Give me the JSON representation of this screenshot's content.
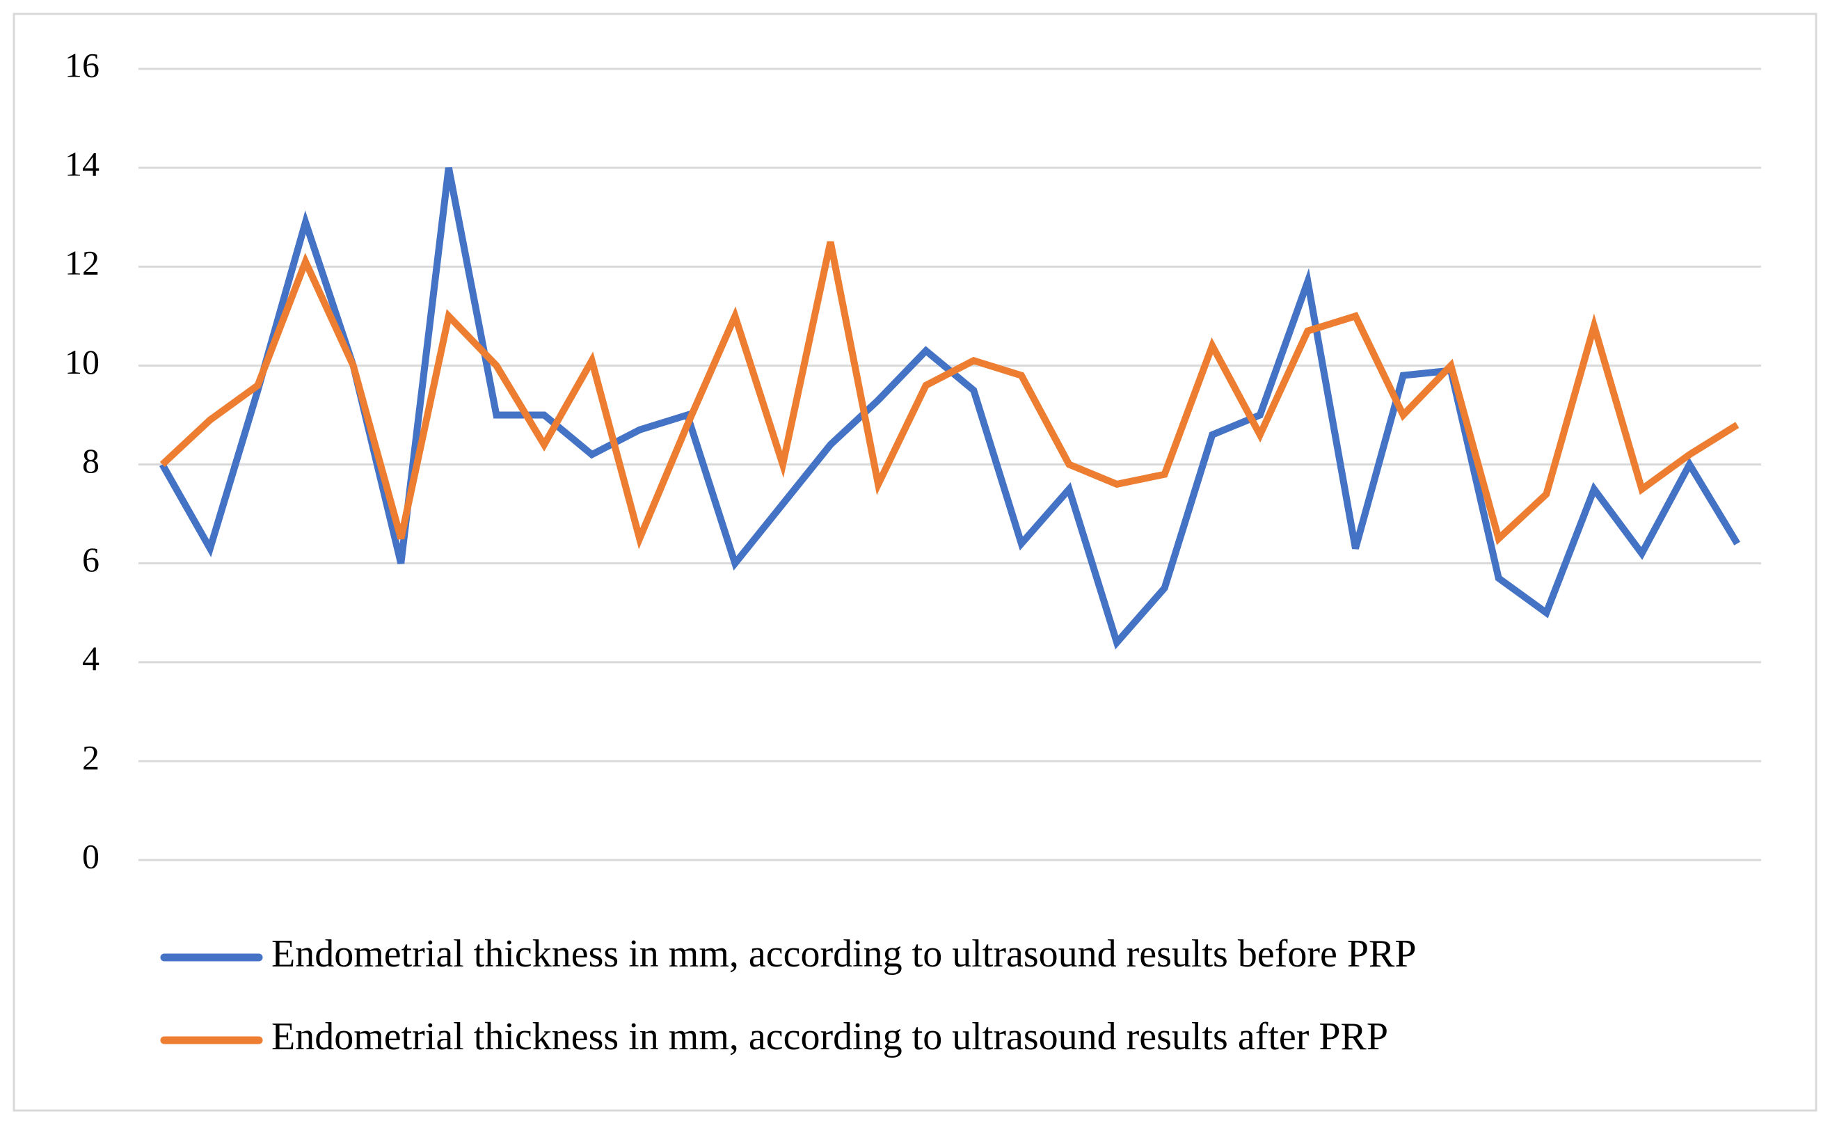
{
  "chart_data": {
    "type": "line",
    "categories": [
      null,
      null,
      null,
      null,
      null,
      null,
      null,
      null,
      null,
      null,
      null,
      null,
      null,
      null,
      null,
      null,
      null,
      null,
      null,
      null,
      null,
      null,
      null,
      null,
      null,
      null,
      null,
      null,
      null,
      null,
      null,
      null,
      null,
      null
    ],
    "series": [
      {
        "name": "Endometrial thickness in mm, according to ultrasound results before PRP",
        "color": "#4472c4",
        "values": [
          8,
          6.3,
          9.5,
          12.9,
          10,
          6,
          14,
          9,
          9,
          8.2,
          8.7,
          9,
          6,
          7.2,
          8.4,
          9.3,
          10.3,
          9.5,
          6.4,
          7.5,
          4.4,
          5.5,
          8.6,
          9,
          11.7,
          6.3,
          9.8,
          9.9,
          5.7,
          5,
          7.5,
          6.2,
          8,
          6.4
        ]
      },
      {
        "name": "Endometrial thickness in mm, according to ultrasound results after PRP",
        "color": "#ed7d31",
        "values": [
          8,
          8.9,
          9.6,
          12.1,
          10,
          6.5,
          11,
          10,
          8.4,
          10.1,
          6.5,
          8.8,
          11,
          8,
          12.5,
          7.6,
          9.6,
          10.1,
          9.8,
          8,
          7.6,
          7.8,
          10.4,
          8.6,
          10.7,
          11,
          9,
          10,
          6.5,
          7.4,
          10.8,
          7.5,
          8.2,
          8.8
        ]
      }
    ],
    "ylim": [
      0,
      16
    ],
    "yticks": [
      0,
      2,
      4,
      6,
      8,
      10,
      12,
      14,
      16
    ],
    "grid": true,
    "legend": "bottom"
  }
}
